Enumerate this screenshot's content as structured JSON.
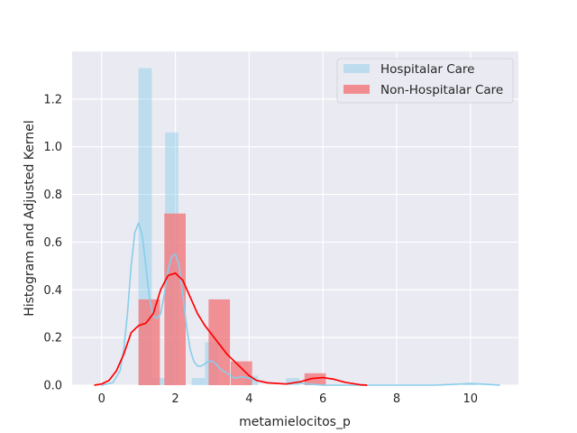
{
  "chart_data": {
    "type": "bar",
    "xlabel": "metamielocitos_p",
    "ylabel": "Histogram and Adjusted Kernel",
    "xlim": [
      -0.8,
      11.3
    ],
    "ylim": [
      0,
      1.4
    ],
    "xticks": [
      0,
      2,
      4,
      6,
      8,
      10
    ],
    "yticks": [
      0.0,
      0.2,
      0.4,
      0.6,
      0.8,
      1.0,
      1.2
    ],
    "xtick_labels": [
      "0",
      "2",
      "4",
      "6",
      "8",
      "10"
    ],
    "ytick_labels": [
      "0.0",
      "0.2",
      "0.4",
      "0.6",
      "0.8",
      "1.0",
      "1.2"
    ],
    "grid": true,
    "legend_position": "top-right",
    "colors": {
      "background": "#eaeaf2",
      "grid": "#ffffff",
      "hospitalar_bar": "#87ceeb",
      "hospitalar_line": "#87ceeb",
      "non_hospitalar_bar": "#f27c80",
      "non_hospitalar_line": "#ff0000"
    },
    "series": [
      {
        "name": "Hospitalar Care",
        "kind": "histogram",
        "bar_width": 0.36,
        "bars": [
          {
            "x": 1.0,
            "height": 1.33
          },
          {
            "x": 1.36,
            "height": 0.03
          },
          {
            "x": 1.72,
            "height": 0.0
          },
          {
            "x": 1.72,
            "height": 1.06
          },
          {
            "x": 2.44,
            "height": 0.0
          },
          {
            "x": 2.44,
            "height": 0.03
          },
          {
            "x": 2.8,
            "height": 0.18
          },
          {
            "x": 3.16,
            "height": 0.0
          },
          {
            "x": 3.52,
            "height": 0.0
          },
          {
            "x": 3.88,
            "height": 0.04
          },
          {
            "x": 5.0,
            "height": 0.03
          },
          {
            "x": 9.8,
            "height": 0.005
          }
        ]
      },
      {
        "name": "Non-Hospitalar Care",
        "kind": "histogram",
        "bar_width": 0.58,
        "bars": [
          {
            "x": 1.0,
            "height": 0.36
          },
          {
            "x": 1.7,
            "height": 0.72
          },
          {
            "x": 2.9,
            "height": 0.36
          },
          {
            "x": 3.5,
            "height": 0.1
          },
          {
            "x": 5.5,
            "height": 0.05
          }
        ]
      }
    ],
    "kde": [
      {
        "name": "Hospitalar Care",
        "points": [
          [
            0.0,
            0.0
          ],
          [
            0.3,
            0.01
          ],
          [
            0.5,
            0.06
          ],
          [
            0.6,
            0.15
          ],
          [
            0.7,
            0.3
          ],
          [
            0.8,
            0.5
          ],
          [
            0.9,
            0.64
          ],
          [
            1.0,
            0.68
          ],
          [
            1.1,
            0.63
          ],
          [
            1.2,
            0.5
          ],
          [
            1.3,
            0.36
          ],
          [
            1.4,
            0.29
          ],
          [
            1.5,
            0.28
          ],
          [
            1.6,
            0.3
          ],
          [
            1.7,
            0.38
          ],
          [
            1.8,
            0.48
          ],
          [
            1.9,
            0.54
          ],
          [
            2.0,
            0.55
          ],
          [
            2.1,
            0.5
          ],
          [
            2.2,
            0.38
          ],
          [
            2.3,
            0.25
          ],
          [
            2.4,
            0.15
          ],
          [
            2.5,
            0.1
          ],
          [
            2.6,
            0.08
          ],
          [
            2.7,
            0.08
          ],
          [
            2.8,
            0.09
          ],
          [
            2.9,
            0.1
          ],
          [
            3.0,
            0.1
          ],
          [
            3.1,
            0.09
          ],
          [
            3.2,
            0.07
          ],
          [
            3.4,
            0.05
          ],
          [
            3.6,
            0.03
          ],
          [
            3.8,
            0.035
          ],
          [
            4.0,
            0.03
          ],
          [
            4.2,
            0.02
          ],
          [
            4.5,
            0.01
          ],
          [
            5.0,
            0.005
          ],
          [
            5.3,
            0.01
          ],
          [
            5.6,
            0.005
          ],
          [
            6.0,
            0.0
          ],
          [
            7.0,
            0.0
          ],
          [
            8.0,
            0.0
          ],
          [
            9.0,
            0.0
          ],
          [
            9.5,
            0.003
          ],
          [
            10.0,
            0.007
          ],
          [
            10.5,
            0.003
          ],
          [
            10.8,
            0.0
          ]
        ]
      },
      {
        "name": "Non-Hospitalar Care",
        "points": [
          [
            -0.2,
            0.0
          ],
          [
            0.0,
            0.005
          ],
          [
            0.2,
            0.02
          ],
          [
            0.4,
            0.06
          ],
          [
            0.6,
            0.13
          ],
          [
            0.8,
            0.22
          ],
          [
            1.0,
            0.25
          ],
          [
            1.2,
            0.26
          ],
          [
            1.4,
            0.3
          ],
          [
            1.6,
            0.4
          ],
          [
            1.8,
            0.46
          ],
          [
            2.0,
            0.47
          ],
          [
            2.2,
            0.44
          ],
          [
            2.4,
            0.37
          ],
          [
            2.6,
            0.3
          ],
          [
            2.8,
            0.25
          ],
          [
            3.0,
            0.21
          ],
          [
            3.2,
            0.17
          ],
          [
            3.4,
            0.13
          ],
          [
            3.6,
            0.1
          ],
          [
            3.8,
            0.07
          ],
          [
            4.0,
            0.04
          ],
          [
            4.2,
            0.02
          ],
          [
            4.5,
            0.01
          ],
          [
            5.0,
            0.005
          ],
          [
            5.4,
            0.015
          ],
          [
            5.7,
            0.028
          ],
          [
            6.0,
            0.032
          ],
          [
            6.3,
            0.025
          ],
          [
            6.6,
            0.012
          ],
          [
            7.0,
            0.002
          ],
          [
            7.2,
            0.0
          ]
        ]
      }
    ]
  }
}
